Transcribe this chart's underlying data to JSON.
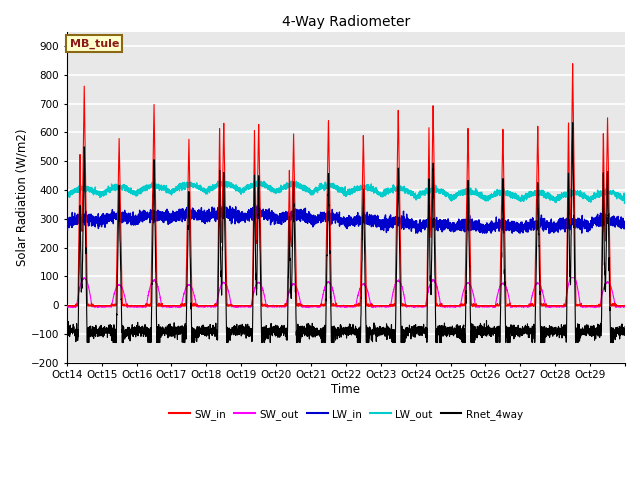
{
  "title": "4-Way Radiometer",
  "xlabel": "Time",
  "ylabel": "Solar Radiation (W/m2)",
  "ylim": [
    -200,
    950
  ],
  "yticks": [
    -200,
    -100,
    0,
    100,
    200,
    300,
    400,
    500,
    600,
    700,
    800,
    900
  ],
  "x_labels": [
    "Oct 14",
    "Oct 15",
    "Oct 16",
    "Oct 17",
    "Oct 18",
    "Oct 19",
    "Oct 20",
    "Oct 21",
    "Oct 22",
    "Oct 23",
    "Oct 24",
    "Oct 25",
    "Oct 26",
    "Oct 27",
    "Oct 28",
    "Oct 29"
  ],
  "annotation_text": "MB_tule",
  "annotation_color": "#8b1a1a",
  "annotation_bg": "#ffffcc",
  "annotation_edge": "#8b6914",
  "plot_bg": "#e8e8e8",
  "colors": {
    "SW_in": "#ff0000",
    "SW_out": "#ff00ff",
    "LW_in": "#0000cc",
    "LW_out": "#00cccc",
    "Rnet_4way": "#000000"
  },
  "n_days": 16,
  "pts_per_day": 288,
  "SW_peaks": [
    760,
    580,
    700,
    580,
    640,
    640,
    600,
    650,
    600,
    690,
    700,
    625,
    620,
    625,
    840,
    650
  ],
  "SW_secondary": [
    540,
    0,
    0,
    0,
    620,
    610,
    470,
    0,
    0,
    0,
    620,
    0,
    0,
    0,
    650,
    610
  ],
  "figsize": [
    6.4,
    4.8
  ],
  "dpi": 100
}
